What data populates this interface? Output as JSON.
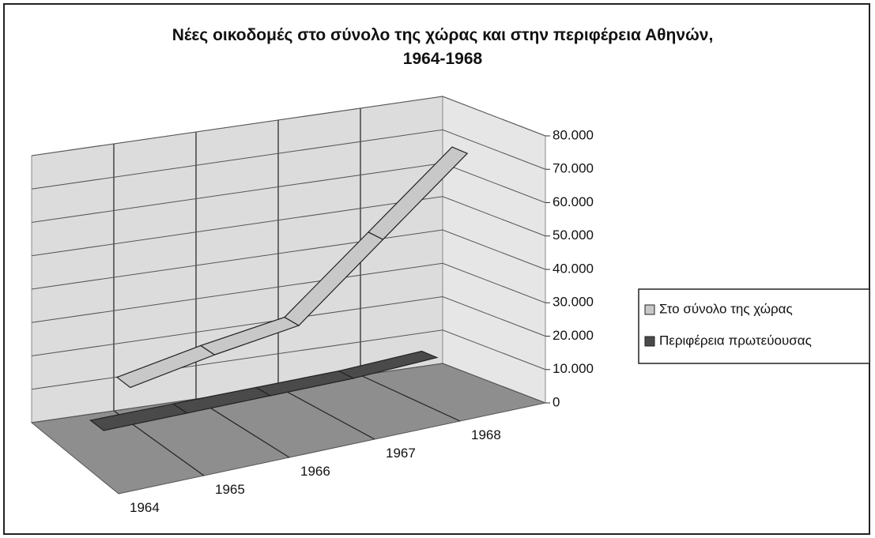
{
  "chart_data": {
    "type": "line3d",
    "title": "Νέες οικοδομές στο σύνολο της χώρας και στην περιφέρεια Αθηνών, 1964-1968",
    "categories": [
      "1964",
      "1965",
      "1966",
      "1967",
      "1968"
    ],
    "series": [
      {
        "name": "Στο σύνολο της χώρας",
        "color": "#c8c8c8",
        "values": [
          22000,
          27000,
          31000,
          52000,
          73000
        ]
      },
      {
        "name": "Περιφέρεια πρωτεύουσας",
        "color": "#4a4a4a",
        "values": [
          3000,
          4000,
          5000,
          6000,
          8000
        ]
      }
    ],
    "ylim": [
      0,
      80000
    ],
    "yticks": [
      {
        "value": 0,
        "label": "0"
      },
      {
        "value": 10000,
        "label": "10.000"
      },
      {
        "value": 20000,
        "label": "20.000"
      },
      {
        "value": 30000,
        "label": "30.000"
      },
      {
        "value": 40000,
        "label": "40.000"
      },
      {
        "value": 50000,
        "label": "50.000"
      },
      {
        "value": 60000,
        "label": "60.000"
      },
      {
        "value": 70000,
        "label": "70.000"
      },
      {
        "value": 80000,
        "label": "80.000"
      }
    ],
    "grid": true,
    "legend": "right"
  }
}
